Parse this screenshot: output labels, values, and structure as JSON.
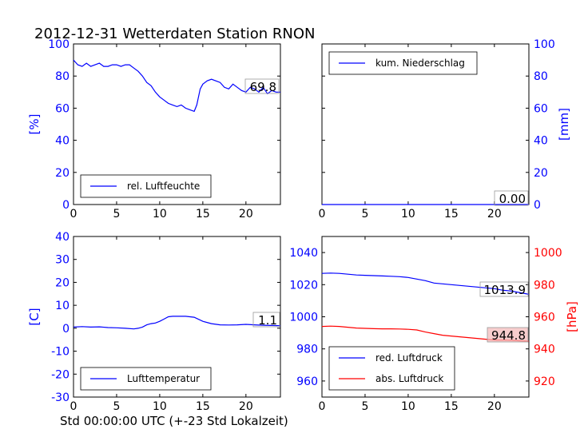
{
  "title": "2012-12-31 Wetterdaten Station RNON",
  "footer_label": "Std 00:00:00 UTC (+-23 Std Lokalzeit)",
  "colors": {
    "primary": "#0000ff",
    "secondary": "#ff0000",
    "axis": "#000000"
  },
  "chart_data": [
    {
      "id": "humidity",
      "type": "line",
      "ylabel": "[%]",
      "xlim": [
        0,
        24
      ],
      "ylim": [
        0,
        100
      ],
      "xticks": [
        0,
        5,
        10,
        15,
        20
      ],
      "yticks": [
        0,
        20,
        40,
        60,
        80,
        100
      ],
      "legend": {
        "placement": "lower-left",
        "entries": [
          "rel. Luftfeuchte"
        ]
      },
      "last_value_label": "69.8",
      "series": [
        {
          "name": "rel. Luftfeuchte",
          "color": "#0000ff",
          "x": [
            0,
            0.5,
            1,
            1.5,
            2,
            2.5,
            3,
            3.5,
            4,
            4.5,
            5,
            5.5,
            6,
            6.5,
            7,
            7.5,
            8,
            8.5,
            9,
            9.5,
            10,
            10.5,
            11,
            11.5,
            12,
            12.5,
            13,
            13.5,
            14,
            14.3,
            14.7,
            15,
            15.5,
            16,
            16.5,
            17,
            17.5,
            18,
            18.5,
            19,
            19.5,
            20,
            20.5,
            21,
            21.5,
            22,
            22.5,
            23,
            23.5,
            24
          ],
          "y": [
            90,
            87,
            86,
            88,
            86,
            87,
            88,
            86,
            86,
            87,
            87,
            86,
            87,
            87,
            85,
            83,
            80,
            76,
            74,
            70,
            67,
            65,
            63,
            62,
            61,
            62,
            60,
            59,
            58,
            62,
            72,
            75,
            77,
            78,
            77,
            76,
            73,
            72,
            75,
            73,
            71,
            70,
            73,
            72,
            70,
            73,
            69,
            71,
            70,
            70
          ]
        }
      ]
    },
    {
      "id": "precipitation",
      "type": "line",
      "ylabel": "[mm]",
      "xlim": [
        0,
        24
      ],
      "ylim": [
        0,
        100
      ],
      "xticks": [
        0,
        5,
        10,
        15,
        20
      ],
      "yticks": [
        0,
        20,
        40,
        60,
        80,
        100
      ],
      "legend": {
        "placement": "upper-left",
        "entries": [
          "kum. Niederschlag"
        ]
      },
      "last_value_label": "0.00",
      "series": [
        {
          "name": "kum. Niederschlag",
          "color": "#0000ff",
          "x": [
            0,
            24
          ],
          "y": [
            0,
            0
          ]
        }
      ]
    },
    {
      "id": "temperature",
      "type": "line",
      "ylabel": "[C]",
      "xlim": [
        0,
        24
      ],
      "ylim": [
        -30,
        40
      ],
      "xticks": [
        0,
        5,
        10,
        15,
        20
      ],
      "yticks": [
        -30,
        -20,
        -10,
        0,
        10,
        20,
        30,
        40
      ],
      "legend": {
        "placement": "lower-left",
        "entries": [
          "Lufttemperatur"
        ]
      },
      "last_value_label": "1.1",
      "series": [
        {
          "name": "Lufttemperatur",
          "color": "#0000ff",
          "x": [
            0,
            1,
            2,
            3,
            4,
            5,
            6,
            7,
            7.5,
            8,
            8.5,
            9,
            9.5,
            10,
            10.5,
            11,
            11.5,
            12,
            13,
            13.5,
            14,
            15,
            16,
            17,
            18,
            19,
            20,
            21,
            22,
            23,
            24
          ],
          "y": [
            0.5,
            0.7,
            0.5,
            0.6,
            0.3,
            0.2,
            0.0,
            -0.3,
            0.0,
            0.5,
            1.5,
            2.0,
            2.3,
            3.0,
            4.0,
            5.0,
            5.2,
            5.2,
            5.2,
            5.0,
            4.8,
            3.0,
            2.0,
            1.5,
            1.4,
            1.5,
            1.7,
            1.5,
            1.3,
            1.2,
            1.1
          ]
        }
      ]
    },
    {
      "id": "pressure",
      "type": "line",
      "ylabel": "[hPa]",
      "xlim": [
        0,
        24
      ],
      "ylim": [
        950,
        1050
      ],
      "y2lim": [
        910,
        1010
      ],
      "xticks": [
        0,
        5,
        10,
        15,
        20
      ],
      "yticks": [
        960,
        980,
        1000,
        1020,
        1040
      ],
      "y2ticks": [
        920,
        940,
        960,
        980,
        1000
      ],
      "legend": {
        "placement": "lower-left",
        "entries": [
          "red. Luftdruck",
          "abs. Luftdruck"
        ]
      },
      "last_value_labels": [
        "1013.9",
        "944.8"
      ],
      "series": [
        {
          "name": "red. Luftdruck",
          "color": "#0000ff",
          "axis": "left",
          "x": [
            0,
            1,
            2,
            3,
            4,
            5,
            6,
            7,
            8,
            9,
            10,
            11,
            12,
            13,
            14,
            15,
            16,
            17,
            18,
            19,
            20,
            21,
            22,
            23,
            24
          ],
          "y": [
            1027,
            1027.2,
            1027,
            1026.5,
            1026,
            1025.8,
            1025.6,
            1025.4,
            1025.2,
            1025,
            1024.5,
            1023.5,
            1022.5,
            1021,
            1020.5,
            1020,
            1019.5,
            1019,
            1018.5,
            1018,
            1017.5,
            1016.5,
            1016,
            1015,
            1014
          ]
        }
      ],
      "series_right": [
        {
          "name": "abs. Luftdruck",
          "color": "#ff0000",
          "axis": "right",
          "x": [
            0,
            1,
            2,
            3,
            4,
            5,
            6,
            7,
            8,
            9,
            10,
            11,
            12,
            13,
            14,
            15,
            16,
            17,
            18,
            19,
            20,
            21,
            22,
            23,
            24
          ],
          "y": [
            954,
            954.2,
            954,
            953.5,
            953,
            952.8,
            952.6,
            952.5,
            952.5,
            952.4,
            952.2,
            951.8,
            950.5,
            949.5,
            948.5,
            948,
            947.5,
            947,
            946.5,
            946,
            945.5,
            945.5,
            945.3,
            945,
            944.8
          ]
        }
      ]
    }
  ]
}
